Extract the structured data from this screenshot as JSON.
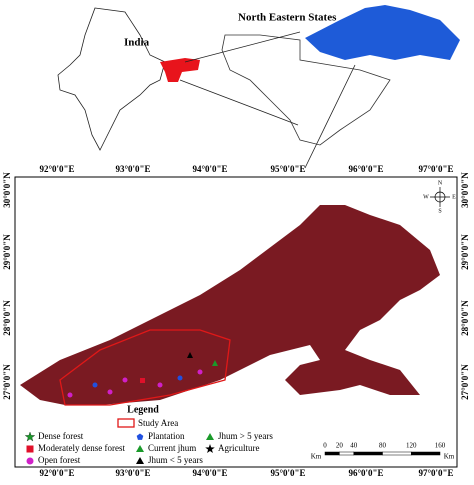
{
  "inset": {
    "india_label": "India",
    "ne_label": "North Eastern States"
  },
  "map": {
    "longitudes": [
      "92°0'0\"E",
      "93°0'0\"E",
      "94°0'0\"E",
      "95°0'0\"E",
      "96°0'0\"E",
      "97°0'0\"E"
    ],
    "latitudes": [
      "30°0'0\"N",
      "29°0'0\"N",
      "28°0'0\"N",
      "27°0'0\"N"
    ],
    "compass": {
      "n": "N",
      "e": "E",
      "s": "S",
      "w": "W"
    }
  },
  "legend": {
    "title": "Legend",
    "study_area": "Study Area",
    "items": [
      {
        "label": "Dense forest",
        "symbol": "star",
        "color": "#1a9a2a"
      },
      {
        "label": "Moderately dense forest",
        "symbol": "square",
        "color": "#e0102a"
      },
      {
        "label": "Open forest",
        "symbol": "circle",
        "color": "#d020c8"
      },
      {
        "label": "Plantation",
        "symbol": "pentagon",
        "color": "#2050e0"
      },
      {
        "label": "Current jhum",
        "symbol": "triangle",
        "color": "#1a9a2a"
      },
      {
        "label": "Jhum < 5 years",
        "symbol": "triangle",
        "color": "#000000"
      },
      {
        "label": "Jhum > 5 years",
        "symbol": "triangle",
        "color": "#1a9a2a"
      },
      {
        "label": "Agriculture",
        "symbol": "star",
        "color": "#000000"
      }
    ]
  },
  "scale": {
    "ticks": [
      0,
      20,
      40,
      80,
      120,
      160
    ],
    "unit": "Km"
  }
}
